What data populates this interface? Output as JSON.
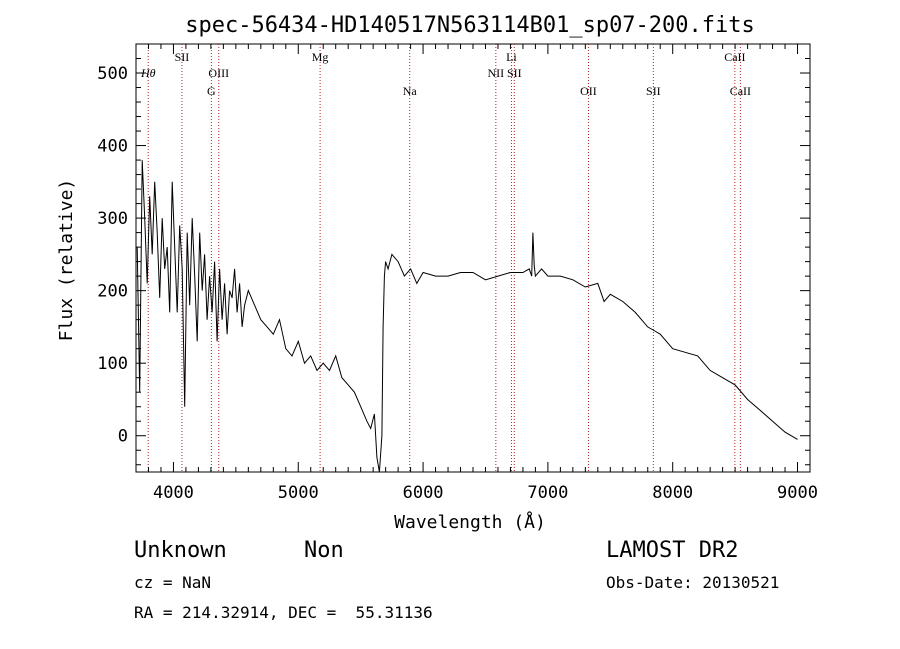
{
  "chart_data": {
    "type": "line",
    "title": "spec-56434-HD140517N563114B01_sp07-200.fits",
    "xlabel": "Wavelength (Å)",
    "ylabel": "Flux (relative)",
    "xlim": [
      3700,
      9100
    ],
    "ylim": [
      -50,
      540
    ],
    "x_ticks": [
      4000,
      5000,
      6000,
      7000,
      8000,
      9000
    ],
    "y_ticks": [
      0,
      100,
      200,
      300,
      400,
      500
    ],
    "grid": false,
    "series_color": "#000000",
    "line_color": "#b22222",
    "spectral_lines": [
      {
        "label": "Hθ",
        "wavelength": 3798,
        "row": 2
      },
      {
        "label": "SII",
        "wavelength": 4068,
        "row": 1
      },
      {
        "label": "OIII",
        "wavelength": 4363,
        "row": 2
      },
      {
        "label": "G",
        "wavelength": 4304,
        "row": 3
      },
      {
        "label": "Mg",
        "wavelength": 5175,
        "row": 1
      },
      {
        "label": "Na",
        "wavelength": 5893,
        "row": 3
      },
      {
        "label": "Li",
        "wavelength": 6708,
        "row": 1
      },
      {
        "label": "NII",
        "wavelength": 6583,
        "row": 2
      },
      {
        "label": "SII",
        "wavelength": 6731,
        "row": 2
      },
      {
        "label": "OII",
        "wavelength": 7325,
        "row": 3
      },
      {
        "label": "SII",
        "wavelength": 7845,
        "row": 3
      },
      {
        "label": "CaII",
        "wavelength": 8498,
        "row": 1
      },
      {
        "label": "CaII",
        "wavelength": 8542,
        "row": 3
      }
    ],
    "spectrum": {
      "x": [
        3710,
        3730,
        3750,
        3770,
        3790,
        3810,
        3830,
        3850,
        3870,
        3890,
        3910,
        3930,
        3950,
        3970,
        3990,
        4010,
        4030,
        4050,
        4070,
        4090,
        4110,
        4130,
        4150,
        4170,
        4190,
        4210,
        4230,
        4250,
        4270,
        4290,
        4310,
        4330,
        4350,
        4370,
        4390,
        4410,
        4430,
        4450,
        4470,
        4490,
        4510,
        4530,
        4550,
        4570,
        4600,
        4650,
        4700,
        4750,
        4800,
        4850,
        4900,
        4950,
        5000,
        5050,
        5100,
        5150,
        5200,
        5250,
        5300,
        5350,
        5400,
        5450,
        5500,
        5550,
        5580,
        5610,
        5630,
        5650,
        5670,
        5680,
        5690,
        5700,
        5720,
        5750,
        5800,
        5850,
        5900,
        5950,
        6000,
        6100,
        6200,
        6300,
        6400,
        6500,
        6600,
        6700,
        6800,
        6850,
        6870,
        6880,
        6890,
        6900,
        6950,
        7000,
        7100,
        7200,
        7300,
        7400,
        7450,
        7500,
        7600,
        7700,
        7800,
        7850,
        7900,
        8000,
        8100,
        8200,
        8300,
        8400,
        8500,
        8600,
        8700,
        8800,
        8900,
        9000
      ],
      "y": [
        260,
        60,
        380,
        300,
        210,
        330,
        250,
        350,
        280,
        190,
        300,
        230,
        260,
        170,
        350,
        260,
        170,
        290,
        230,
        40,
        280,
        180,
        300,
        220,
        130,
        280,
        200,
        250,
        160,
        220,
        170,
        240,
        130,
        230,
        160,
        210,
        140,
        200,
        190,
        230,
        170,
        210,
        150,
        180,
        200,
        180,
        160,
        150,
        140,
        160,
        120,
        110,
        130,
        100,
        110,
        90,
        100,
        90,
        110,
        80,
        70,
        60,
        40,
        20,
        10,
        30,
        -30,
        -50,
        0,
        150,
        220,
        240,
        230,
        250,
        240,
        220,
        230,
        210,
        225,
        220,
        220,
        225,
        225,
        215,
        220,
        225,
        225,
        230,
        220,
        280,
        235,
        220,
        230,
        220,
        220,
        215,
        205,
        210,
        185,
        195,
        185,
        170,
        150,
        145,
        140,
        120,
        115,
        110,
        90,
        80,
        70,
        50,
        35,
        20,
        5,
        -5
      ]
    }
  },
  "footer": {
    "object_class": "Unknown",
    "subclass": "Non",
    "survey": "LAMOST DR2",
    "cz": "cz = NaN",
    "obs_date": "Obs-Date: 20130521",
    "coords": "RA = 214.32914, DEC =  55.31136"
  }
}
